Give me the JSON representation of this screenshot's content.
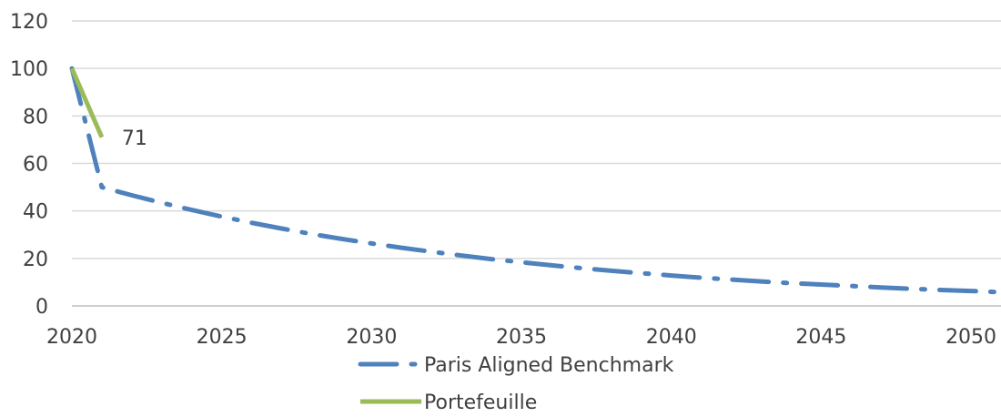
{
  "chart_data": {
    "type": "line",
    "title": "",
    "xlabel": "",
    "ylabel": "",
    "xlim": [
      2020,
      2051
    ],
    "ylim": [
      0,
      120
    ],
    "x_ticks": [
      2020,
      2025,
      2030,
      2035,
      2040,
      2045,
      2050
    ],
    "y_ticks": [
      0,
      20,
      40,
      60,
      80,
      100,
      120
    ],
    "grid": "horizontal",
    "legend_position": "bottom",
    "series": [
      {
        "name": "Paris Aligned Benchmark",
        "style": "dashed",
        "color": "#4F81BD",
        "x": [
          2020,
          2021,
          2022,
          2023,
          2024,
          2025,
          2026,
          2027,
          2028,
          2029,
          2030,
          2031,
          2032,
          2033,
          2034,
          2035,
          2036,
          2037,
          2038,
          2039,
          2040,
          2041,
          2042,
          2043,
          2044,
          2045,
          2046,
          2047,
          2048,
          2049,
          2050,
          2051
        ],
        "y": [
          100,
          50,
          46.6,
          43.4,
          40.4,
          37.6,
          35.0,
          32.6,
          30.3,
          28.2,
          26.3,
          24.5,
          22.8,
          21.2,
          19.7,
          18.4,
          17.1,
          15.9,
          14.8,
          13.8,
          12.8,
          11.9,
          11.1,
          10.3,
          9.6,
          9.0,
          8.4,
          7.8,
          7.2,
          6.7,
          6.3,
          5.8
        ]
      },
      {
        "name": "Portefeuille",
        "style": "solid",
        "color": "#9BBB59",
        "x": [
          2020,
          2021
        ],
        "y": [
          100,
          71
        ]
      }
    ],
    "annotations": [
      {
        "series": "Portefeuille",
        "x": 2021,
        "y": 71,
        "text": "71"
      }
    ]
  }
}
